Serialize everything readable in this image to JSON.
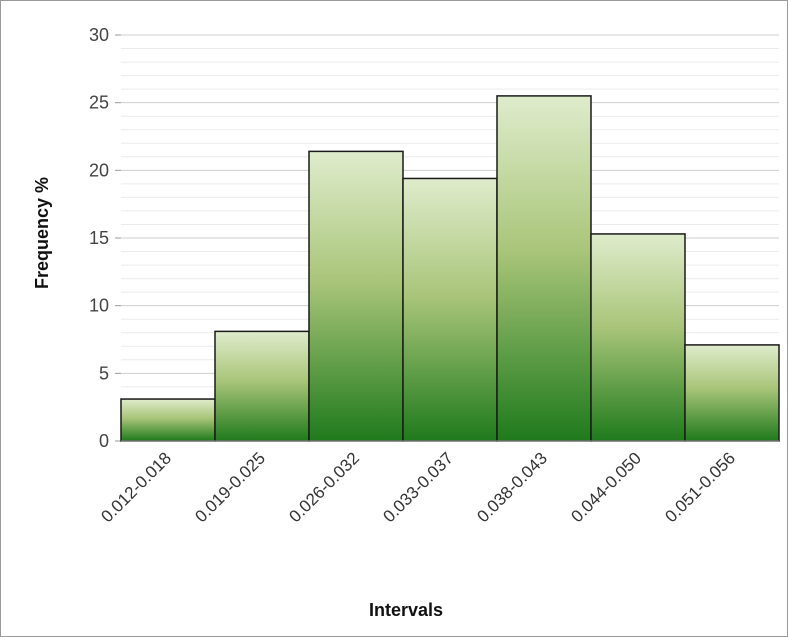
{
  "chart_data": {
    "type": "bar",
    "title": "",
    "xlabel": "Intervals",
    "ylabel": "Frequency %",
    "categories": [
      "0.012-0.018",
      "0.019-0.025",
      "0.026-0.032",
      "0.033-0.037",
      "0.038-0.043",
      "0.044-0.050",
      "0.051-0.056"
    ],
    "values": [
      3.1,
      8.1,
      21.4,
      19.4,
      25.5,
      15.3,
      7.1
    ],
    "ylim": [
      0,
      30
    ],
    "yticks": [
      0,
      5,
      10,
      15,
      20,
      25,
      30
    ],
    "grid": true,
    "legend": "none",
    "colors": {
      "bar_top": "#dfeccc",
      "bar_mid": "#a9c579",
      "bar_bottom": "#1f7a1c",
      "bar_edge": "#1a1a1a",
      "grid": "#cfcfcf",
      "minor_grid": "#ebebeb"
    }
  }
}
